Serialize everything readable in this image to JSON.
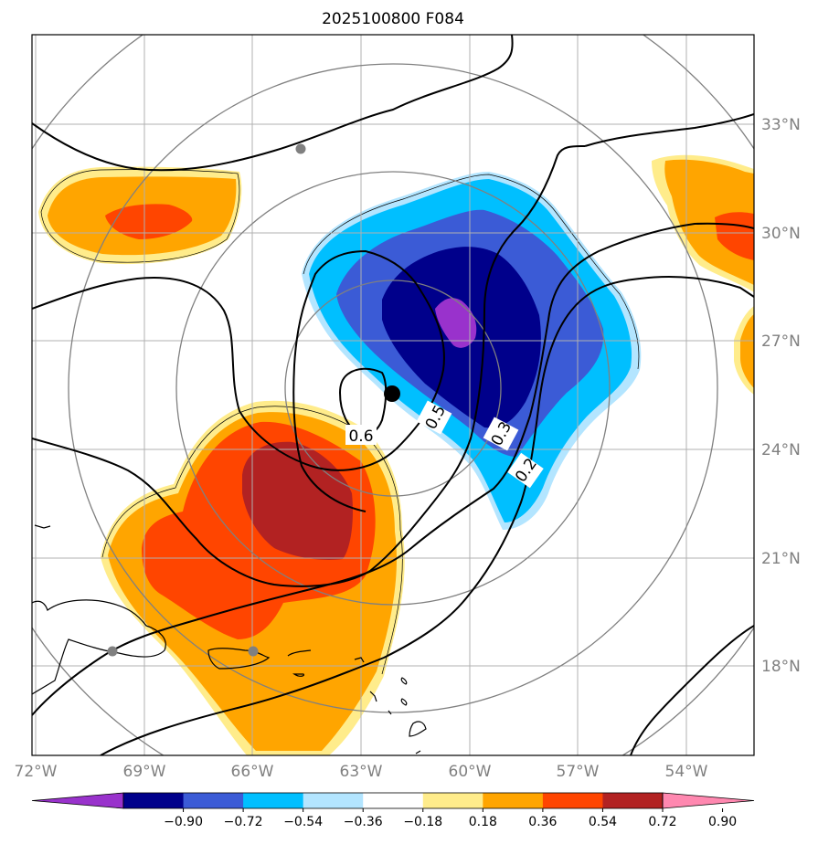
{
  "title": "2025100800 F084",
  "map": {
    "lon_labels": [
      "72°W",
      "69°W",
      "66°W",
      "63°W",
      "60°W",
      "57°W",
      "54°W"
    ],
    "lat_labels": [
      "33°N",
      "30°N",
      "27°N",
      "24°N",
      "21°N",
      "18°N"
    ],
    "contour_labels": [
      "0.6",
      "0.5",
      "0.3",
      "0.2"
    ],
    "storm_center": {
      "lon": -62.0,
      "lat": 25.5
    },
    "range_rings": 4
  },
  "colorbar": {
    "ticks": [
      "−0.90",
      "−0.72",
      "−0.54",
      "−0.36",
      "−0.18",
      "0.18",
      "0.36",
      "0.54",
      "0.72",
      "0.90"
    ],
    "colors": [
      "#9932cc",
      "#00008b",
      "#3b5bd6",
      "#00bfff",
      "#b3e5ff",
      "#ffffff",
      "#ffec8b",
      "#ffa500",
      "#ff4500",
      "#b22222",
      "#ff88b0"
    ],
    "extend": "both"
  }
}
